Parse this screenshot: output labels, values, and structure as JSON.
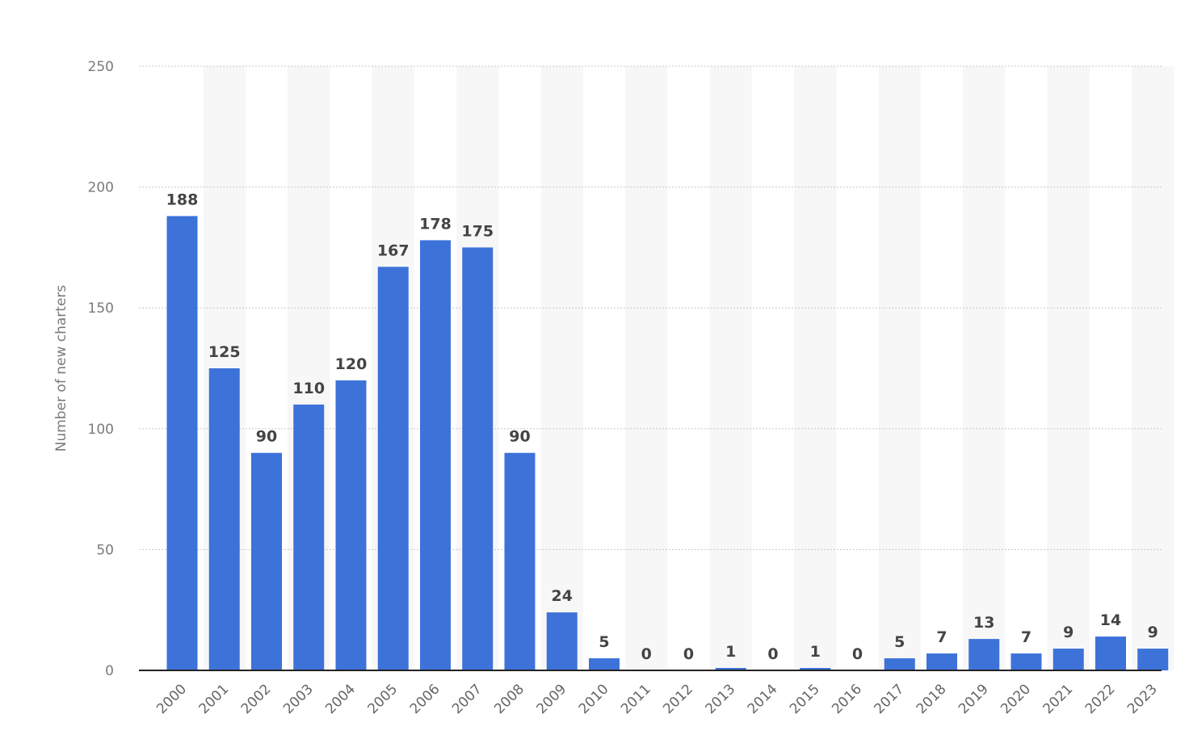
{
  "chart_data": {
    "type": "bar",
    "title": "",
    "xlabel": "",
    "ylabel": "Number of new charters",
    "categories": [
      "2000",
      "2001",
      "2002",
      "2003",
      "2004",
      "2005",
      "2006",
      "2007",
      "2008",
      "2009",
      "2010",
      "2011",
      "2012",
      "2013",
      "2014",
      "2015",
      "2016",
      "2017",
      "2018",
      "2019",
      "2020",
      "2021",
      "2022",
      "2023"
    ],
    "values": [
      188,
      125,
      90,
      110,
      120,
      167,
      178,
      175,
      90,
      24,
      5,
      0,
      0,
      1,
      0,
      1,
      0,
      5,
      7,
      13,
      7,
      9,
      14,
      9
    ],
    "ylim": [
      0,
      250
    ],
    "yticks": [
      0,
      50,
      100,
      150,
      200,
      250
    ],
    "grid": true,
    "bar_color": "#3d72d9",
    "alt_column_shading": "#f7f7f7",
    "data_labels": true
  }
}
